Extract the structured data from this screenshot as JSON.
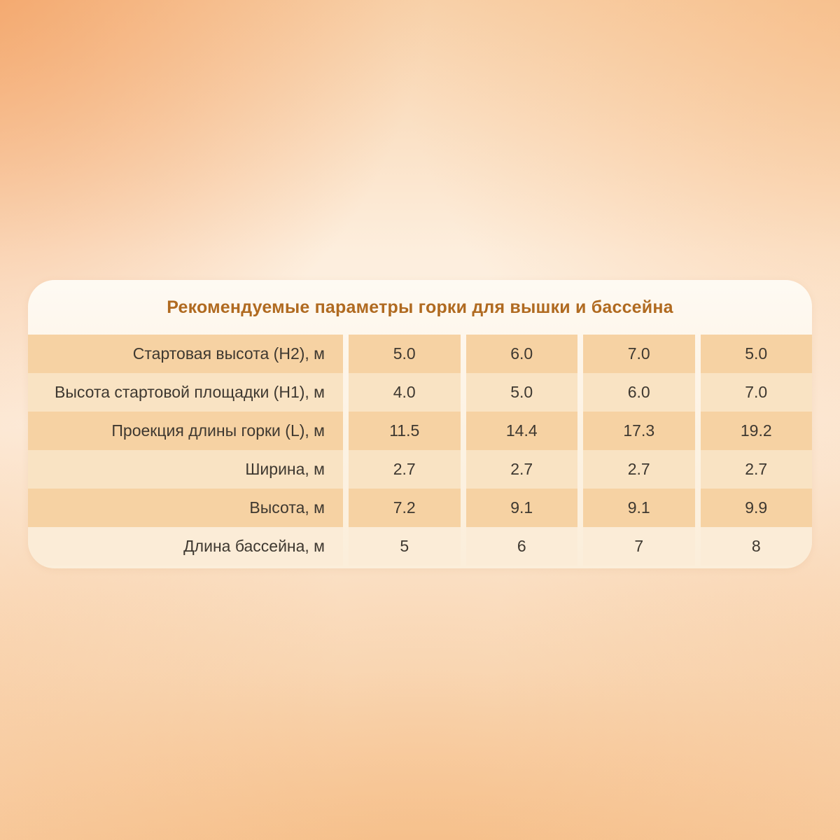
{
  "chart_data": {
    "type": "table",
    "title": "Рекомендуемые параметры горки для вышки и бассейна",
    "rows": [
      {
        "label": "Стартовая высота (H2), м",
        "values": [
          "5.0",
          "6.0",
          "7.0",
          "5.0"
        ]
      },
      {
        "label": "Высота стартовой площадки (H1), м",
        "values": [
          "4.0",
          "5.0",
          "6.0",
          "7.0"
        ]
      },
      {
        "label": "Проекция длины горки (L), м",
        "values": [
          "11.5",
          "14.4",
          "17.3",
          "19.2"
        ]
      },
      {
        "label": "Ширина, м",
        "values": [
          "2.7",
          "2.7",
          "2.7",
          "2.7"
        ]
      },
      {
        "label": "Высота, м",
        "values": [
          "7.2",
          "9.1",
          "9.1",
          "9.9"
        ]
      },
      {
        "label": "Длина бассейна, м",
        "values": [
          "5",
          "6",
          "7",
          "8"
        ]
      }
    ]
  },
  "colors": {
    "title_text": "#b06a20",
    "body_text": "#3e3830",
    "row_dark": "#f6d2a3",
    "row_light": "#f9e3c3",
    "row_lightest": "#fbecd7",
    "background_peach": "#f8d2ab"
  }
}
